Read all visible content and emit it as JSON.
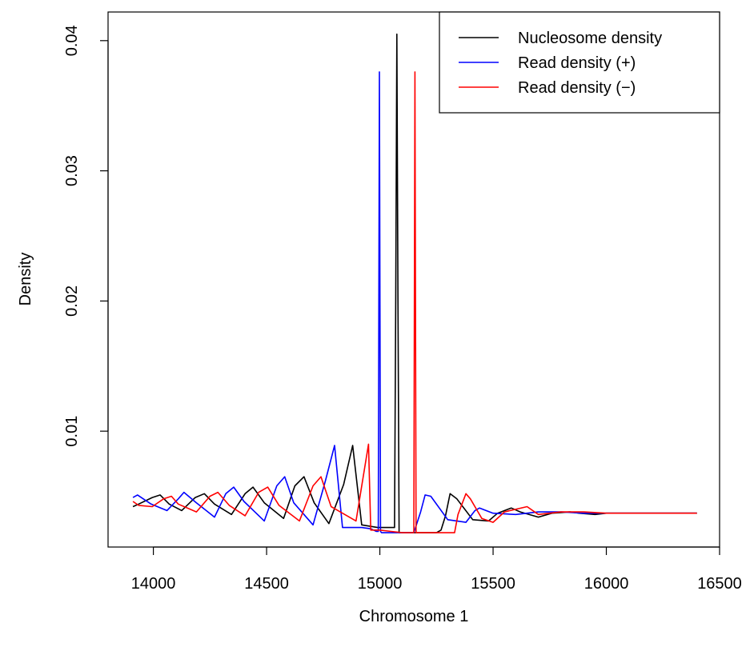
{
  "chart_data": {
    "type": "line",
    "title": "",
    "xlabel": "Chromosome 1",
    "ylabel": "Density",
    "xlim": [
      13800,
      16500
    ],
    "ylim": [
      0.0011,
      0.0422
    ],
    "x_ticks": [
      14000,
      14500,
      15000,
      15500,
      16000,
      16500
    ],
    "x_tick_labels": [
      "14000",
      "14500",
      "15000",
      "15500",
      "16000",
      "16500"
    ],
    "y_ticks": [
      0.01,
      0.02,
      0.03,
      0.04
    ],
    "y_tick_labels": [
      "0.01",
      "0.02",
      "0.03",
      "0.04"
    ],
    "grid": false,
    "legend_position": "top-right",
    "series": [
      {
        "name": "Nucleosome density",
        "color": "#000000",
        "x": [
          13910,
          13935,
          13995,
          14030,
          14070,
          14125,
          14185,
          14225,
          14270,
          14345,
          14405,
          14440,
          14490,
          14575,
          14625,
          14665,
          14710,
          14775,
          14840,
          14880,
          14920,
          14990,
          15050,
          15065,
          15070,
          15075,
          15080,
          15085,
          15090,
          15110,
          15200,
          15250,
          15270,
          15290,
          15310,
          15340,
          15410,
          15480,
          15520,
          15580,
          15620,
          15700,
          15760,
          15840,
          15880,
          15950,
          16000,
          16100,
          16200,
          16300,
          16400
        ],
        "y": [
          0.0042,
          0.0044,
          0.0049,
          0.0051,
          0.0044,
          0.0039,
          0.0049,
          0.0052,
          0.0044,
          0.0036,
          0.0052,
          0.0057,
          0.0045,
          0.0033,
          0.0058,
          0.0065,
          0.0045,
          0.0029,
          0.0059,
          0.0089,
          0.0028,
          0.0026,
          0.0026,
          0.0026,
          0.02,
          0.0405,
          0.02,
          0.0022,
          0.0022,
          0.0022,
          0.0022,
          0.0022,
          0.0024,
          0.0035,
          0.0052,
          0.0048,
          0.0032,
          0.0031,
          0.0037,
          0.0041,
          0.0038,
          0.0034,
          0.0037,
          0.0038,
          0.0037,
          0.0036,
          0.0037,
          0.0037,
          0.0037,
          0.0037,
          0.0037
        ]
      },
      {
        "name": "Read density (+)",
        "color": "#0000ff",
        "x": [
          13910,
          13930,
          13990,
          14060,
          14110,
          14135,
          14190,
          14270,
          14320,
          14355,
          14400,
          14490,
          14545,
          14580,
          14620,
          14705,
          14760,
          14800,
          14835,
          14920,
          14960,
          14985,
          14993,
          14998,
          15003,
          15008,
          15020,
          15100,
          15150,
          15180,
          15200,
          15225,
          15300,
          15380,
          15420,
          15440,
          15500,
          15600,
          15700,
          15800,
          15900,
          16000,
          16100,
          16200,
          16300,
          16400
        ],
        "y": [
          0.0049,
          0.0051,
          0.0044,
          0.0039,
          0.0048,
          0.0053,
          0.0045,
          0.0034,
          0.0052,
          0.0057,
          0.0046,
          0.0031,
          0.0058,
          0.0065,
          0.0045,
          0.0028,
          0.0062,
          0.0089,
          0.0026,
          0.0026,
          0.0025,
          0.0023,
          0.0023,
          0.0376,
          0.0023,
          0.0022,
          0.0022,
          0.0022,
          0.0022,
          0.0038,
          0.0051,
          0.005,
          0.0032,
          0.003,
          0.0039,
          0.0041,
          0.0037,
          0.0036,
          0.0038,
          0.0038,
          0.0037,
          0.0037,
          0.0037,
          0.0037,
          0.0037,
          0.0037
        ]
      },
      {
        "name": "Read density (−)",
        "color": "#ff0000",
        "x": [
          13910,
          13935,
          13995,
          14045,
          14080,
          14110,
          14190,
          14250,
          14285,
          14335,
          14405,
          14465,
          14505,
          14555,
          14645,
          14705,
          14740,
          14785,
          14895,
          14950,
          14960,
          15000,
          15050,
          15100,
          15140,
          15150,
          15155,
          15160,
          15170,
          15250,
          15330,
          15345,
          15380,
          15400,
          15450,
          15500,
          15550,
          15650,
          15700,
          15800,
          15900,
          16000,
          16100,
          16200,
          16300,
          16400
        ],
        "y": [
          0.0046,
          0.0043,
          0.0042,
          0.0048,
          0.005,
          0.0044,
          0.0038,
          0.005,
          0.0053,
          0.0043,
          0.0035,
          0.0053,
          0.0057,
          0.0043,
          0.0031,
          0.0058,
          0.0065,
          0.0042,
          0.0031,
          0.009,
          0.0024,
          0.0024,
          0.0023,
          0.0022,
          0.0022,
          0.0022,
          0.0376,
          0.0022,
          0.0022,
          0.0022,
          0.0022,
          0.0036,
          0.0052,
          0.0048,
          0.0033,
          0.003,
          0.0038,
          0.0042,
          0.0036,
          0.0038,
          0.0038,
          0.0037,
          0.0037,
          0.0037,
          0.0037,
          0.0037
        ]
      }
    ]
  }
}
